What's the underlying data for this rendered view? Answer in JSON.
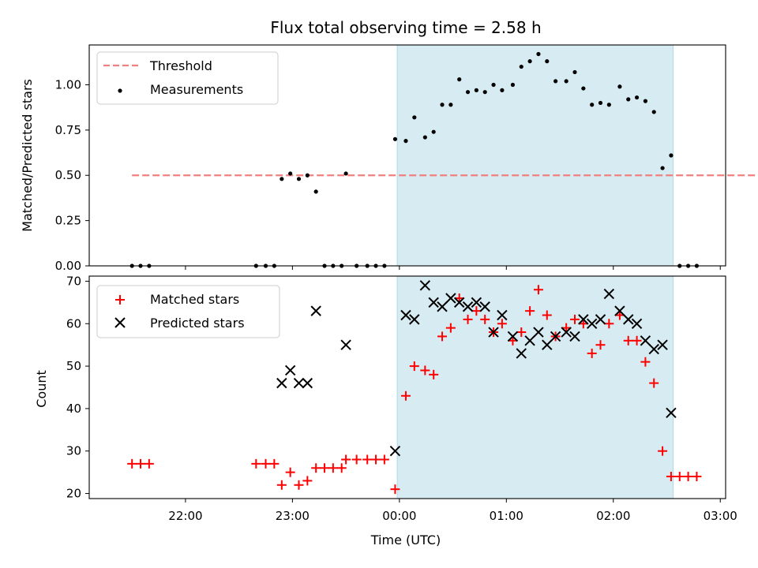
{
  "chart_data": [
    {
      "type": "scatter",
      "title": "Flux total observing time = 2.58 h",
      "xlabel": "",
      "ylabel": "Matched/Predicted stars",
      "x_unit": "hours (UTC, 24 = 00:00 next day)",
      "xlim": [
        21.1,
        27.05
      ],
      "ylim": [
        0,
        1.22
      ],
      "yticks": [
        "0.00",
        "0.25",
        "0.50",
        "0.75",
        "1.00"
      ],
      "ytick_values": [
        0,
        0.25,
        0.5,
        0.75,
        1.0
      ],
      "shaded_span": {
        "x_start": 23.98,
        "x_end": 26.56,
        "color": "#add8e6"
      },
      "threshold": {
        "name": "Threshold",
        "y": 0.5,
        "x_start": 21.5,
        "x_end": 27.8,
        "color": "#f08080"
      },
      "legend": {
        "placement": "top-left",
        "entries": [
          "Threshold",
          "Measurements"
        ]
      },
      "series": [
        {
          "name": "Measurements",
          "color": "#000000",
          "marker": "dot",
          "x": [
            21.5,
            21.58,
            21.66,
            22.66,
            22.75,
            22.83,
            22.9,
            22.98,
            23.06,
            23.14,
            23.22,
            23.3,
            23.38,
            23.46,
            23.5,
            23.6,
            23.7,
            23.78,
            23.86,
            23.96,
            24.06,
            24.14,
            24.24,
            24.32,
            24.4,
            24.48,
            24.56,
            24.64,
            24.72,
            24.8,
            24.88,
            24.96,
            25.06,
            25.14,
            25.22,
            25.3,
            25.38,
            25.46,
            25.56,
            25.64,
            25.72,
            25.8,
            25.88,
            25.96,
            26.06,
            26.14,
            26.22,
            26.3,
            26.38,
            26.46,
            26.54,
            26.62,
            26.7,
            26.78
          ],
          "y": [
            0,
            0,
            0,
            0,
            0,
            0,
            0.48,
            0.51,
            0.48,
            0.5,
            0.41,
            0,
            0,
            0,
            0.51,
            0,
            0,
            0,
            0,
            0.7,
            0.69,
            0.82,
            0.71,
            0.74,
            0.89,
            0.89,
            1.03,
            0.96,
            0.97,
            0.96,
            1.0,
            0.97,
            1.0,
            1.1,
            1.13,
            1.17,
            1.13,
            1.02,
            1.02,
            1.07,
            0.98,
            0.89,
            0.9,
            0.89,
            0.99,
            0.92,
            0.93,
            0.91,
            0.85,
            0.54,
            0.61,
            0,
            0,
            0
          ]
        }
      ]
    },
    {
      "type": "scatter",
      "title": "",
      "xlabel": "Time (UTC)",
      "ylabel": "Count",
      "xlim": [
        21.1,
        27.05
      ],
      "ylim": [
        18.8,
        71.2
      ],
      "xticks": [
        "22:00",
        "23:00",
        "00:00",
        "01:00",
        "02:00",
        "03:00"
      ],
      "xtick_values": [
        22,
        23,
        24,
        25,
        26,
        27
      ],
      "yticks": [
        "20",
        "30",
        "40",
        "50",
        "60",
        "70"
      ],
      "ytick_values": [
        20,
        30,
        40,
        50,
        60,
        70
      ],
      "shaded_span": {
        "x_start": 23.98,
        "x_end": 26.56,
        "color": "#add8e6"
      },
      "legend": {
        "placement": "top-left",
        "entries": [
          "Matched stars",
          "Predicted stars"
        ]
      },
      "series": [
        {
          "name": "Matched stars",
          "color": "#ff0000",
          "marker": "plus",
          "x": [
            21.5,
            21.58,
            21.66,
            22.66,
            22.75,
            22.83,
            22.9,
            22.98,
            23.06,
            23.14,
            23.22,
            23.3,
            23.38,
            23.46,
            23.5,
            23.6,
            23.7,
            23.78,
            23.86,
            23.96,
            24.06,
            24.14,
            24.24,
            24.32,
            24.4,
            24.48,
            24.56,
            24.64,
            24.72,
            24.8,
            24.88,
            24.96,
            25.06,
            25.14,
            25.22,
            25.3,
            25.38,
            25.46,
            25.56,
            25.64,
            25.72,
            25.8,
            25.88,
            25.96,
            26.06,
            26.14,
            26.22,
            26.3,
            26.38,
            26.46,
            26.54,
            26.62,
            26.7,
            26.78
          ],
          "y": [
            27,
            27,
            27,
            27,
            27,
            27,
            22,
            25,
            22,
            23,
            26,
            26,
            26,
            26,
            28,
            28,
            28,
            28,
            28,
            21,
            43,
            50,
            49,
            48,
            57,
            59,
            66,
            61,
            63,
            61,
            58,
            60,
            56,
            58,
            63,
            68,
            62,
            57,
            59,
            61,
            60,
            53,
            55,
            60,
            62,
            56,
            56,
            51,
            46,
            30,
            24,
            24,
            24,
            24
          ]
        },
        {
          "name": "Predicted stars",
          "color": "#000000",
          "marker": "x",
          "x": [
            22.9,
            22.98,
            23.06,
            23.14,
            23.22,
            23.5,
            23.96,
            24.06,
            24.14,
            24.24,
            24.32,
            24.4,
            24.48,
            24.56,
            24.64,
            24.72,
            24.8,
            24.88,
            24.96,
            25.06,
            25.14,
            25.22,
            25.3,
            25.38,
            25.46,
            25.56,
            25.64,
            25.72,
            25.8,
            25.88,
            25.96,
            26.06,
            26.14,
            26.22,
            26.3,
            26.38,
            26.46,
            26.54
          ],
          "y": [
            46,
            49,
            46,
            46,
            63,
            55,
            30,
            62,
            61,
            69,
            65,
            64,
            66,
            65,
            64,
            65,
            64,
            58,
            62,
            57,
            53,
            56,
            58,
            55,
            57,
            58,
            57,
            61,
            60,
            61,
            67,
            63,
            61,
            60,
            56,
            54,
            55,
            39
          ]
        }
      ]
    }
  ]
}
